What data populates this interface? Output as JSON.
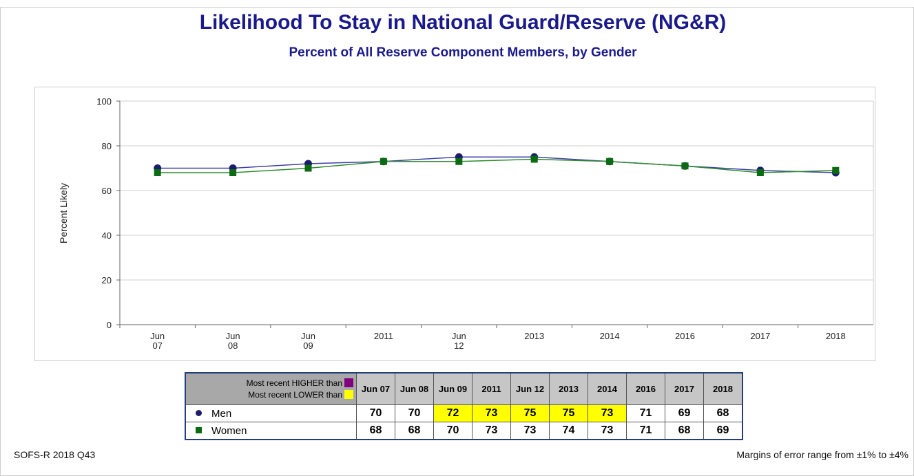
{
  "chart_data": {
    "type": "line",
    "title": "Likelihood To Stay in National Guard/Reserve (NG&R)",
    "subtitle": "Percent of All Reserve Component Members, by Gender",
    "y_label": "Percent Likely",
    "categories": [
      "Jun 07",
      "Jun 08",
      "Jun 09",
      "2011",
      "Jun 12",
      "2013",
      "2014",
      "2016",
      "2017",
      "2018"
    ],
    "series": [
      {
        "name": "Men",
        "color": "#1c1c6e",
        "line_color": "#4040a8",
        "marker": "circle",
        "values": [
          70,
          70,
          72,
          73,
          75,
          75,
          73,
          71,
          69,
          68
        ],
        "highlight": [
          null,
          null,
          1,
          1,
          1,
          1,
          1,
          null,
          null,
          null
        ]
      },
      {
        "name": "Women",
        "color": "#0b6a12",
        "line_color": "#2e8b2e",
        "marker": "square",
        "values": [
          68,
          68,
          70,
          73,
          73,
          74,
          73,
          71,
          68,
          69
        ],
        "highlight": [
          null,
          null,
          null,
          null,
          null,
          null,
          null,
          null,
          null,
          null
        ]
      }
    ],
    "ylim": [
      0,
      100
    ],
    "yticks": [
      0,
      20,
      40,
      60,
      80,
      100
    ],
    "grid": true,
    "table_legend": [
      {
        "label": "Most recent HIGHER than",
        "color": "#800080"
      },
      {
        "label": "Most recent LOWER than",
        "color": "#ffff00"
      }
    ],
    "source": "SOFS-R 2018 Q43",
    "note": "Margins of error range from ±1% to ±4%"
  }
}
